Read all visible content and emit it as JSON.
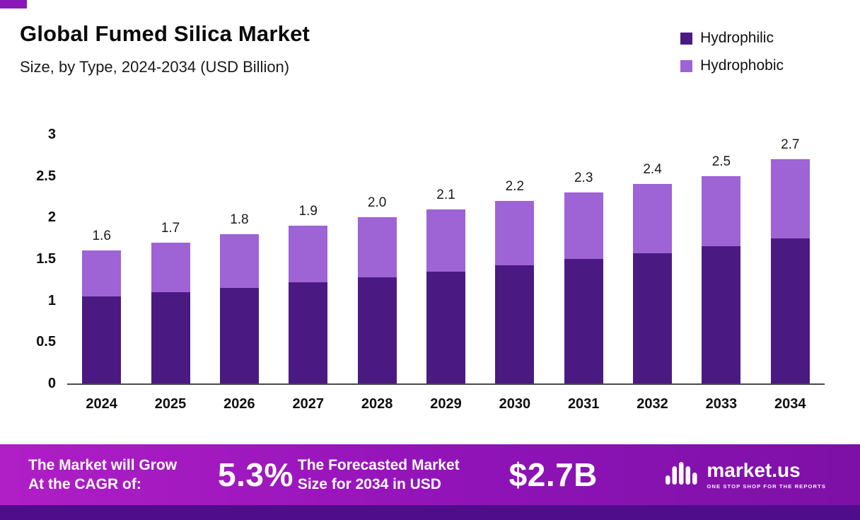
{
  "chart_data": {
    "type": "bar",
    "stacked": true,
    "title": "Global Fumed Silica Market",
    "subtitle": "Size, by Type, 2024-2034 (USD Billion)",
    "categories": [
      "2024",
      "2025",
      "2026",
      "2027",
      "2028",
      "2029",
      "2030",
      "2031",
      "2032",
      "2033",
      "2034"
    ],
    "series": [
      {
        "name": "Hydrophilic",
        "color": "#4a1a82",
        "values": [
          1.05,
          1.1,
          1.15,
          1.22,
          1.28,
          1.35,
          1.42,
          1.5,
          1.57,
          1.65,
          1.75
        ]
      },
      {
        "name": "Hydrophobic",
        "color": "#9e63d4",
        "values": [
          0.55,
          0.6,
          0.65,
          0.68,
          0.72,
          0.75,
          0.78,
          0.8,
          0.83,
          0.85,
          0.95
        ]
      }
    ],
    "totals": [
      1.6,
      1.7,
      1.8,
      1.9,
      2.0,
      2.1,
      2.2,
      2.3,
      2.4,
      2.5,
      2.7
    ],
    "total_labels": [
      "1.6",
      "1.7",
      "1.8",
      "1.9",
      "2.0",
      "2.1",
      "2.2",
      "2.3",
      "2.4",
      "2.5",
      "2.7"
    ],
    "ylim": [
      0,
      3
    ],
    "yticks": [
      "3",
      "2.5",
      "2",
      "1.5",
      "1",
      "0.5",
      "0"
    ],
    "grid": false,
    "legend_position": "top-right"
  },
  "footer": {
    "cagr_line1": "The Market will Grow",
    "cagr_line2": "At the CAGR of:",
    "cagr_value": "5.3%",
    "forecast_line1": "The Forecasted Market",
    "forecast_line2": "Size for 2034 in USD",
    "forecast_value": "$2.7B",
    "brand": "market.us",
    "brand_tagline": "ONE STOP SHOP FOR THE REPORTS",
    "brand_icon": "market-us-waveform-icon"
  },
  "colors": {
    "hydrophilic": "#4a1a82",
    "hydrophobic": "#9e63d4",
    "banner_gradient_start": "#b01ec6",
    "banner_gradient_end": "#7d10a6",
    "footer_strip": "#4f0d8c",
    "accent": "#8a18b8"
  }
}
